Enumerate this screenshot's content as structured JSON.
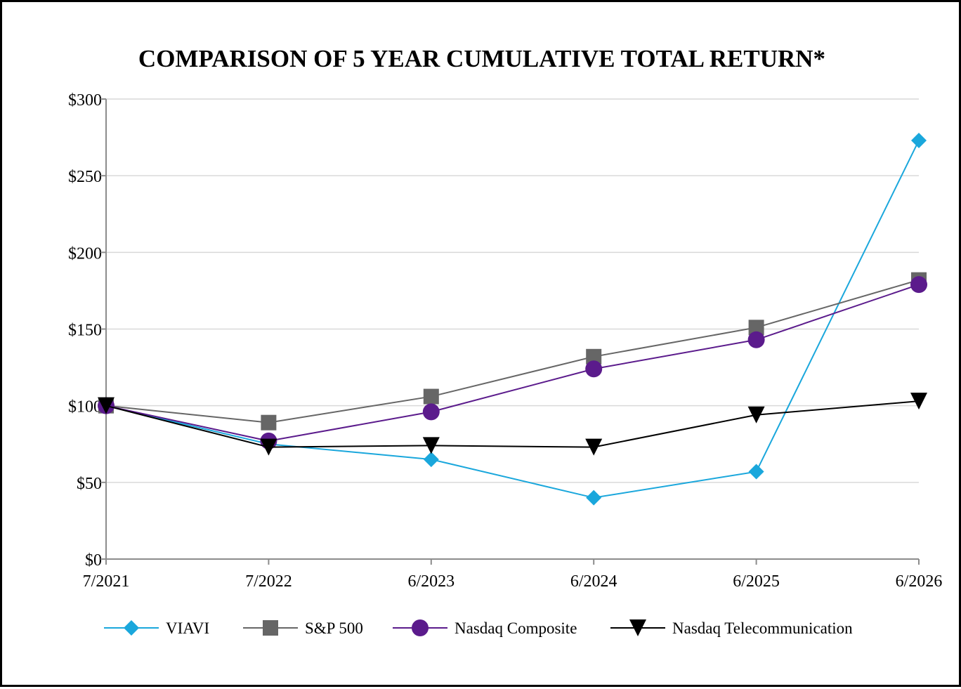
{
  "chart_data": {
    "type": "line",
    "title": "COMPARISON OF 5 YEAR CUMULATIVE TOTAL RETURN*",
    "xlabel": "",
    "ylabel": "",
    "categories": [
      "7/2021",
      "7/2022",
      "6/2023",
      "6/2024",
      "6/2025",
      "6/2026"
    ],
    "y_tick_labels": [
      "$0",
      "$50",
      "$100",
      "$150",
      "$200",
      "$250",
      "$300"
    ],
    "ylim": [
      0,
      300
    ],
    "y_ticks": [
      0,
      50,
      100,
      150,
      200,
      250,
      300
    ],
    "grid": "horizontal",
    "legend_position": "bottom",
    "series": [
      {
        "name": "VIAVI",
        "values": [
          100,
          75,
          65,
          40,
          57,
          273
        ],
        "color": "#1aa7dc",
        "marker": "diamond"
      },
      {
        "name": "S&P 500",
        "values": [
          100,
          89,
          106,
          132,
          151,
          182
        ],
        "color": "#666666",
        "marker": "square"
      },
      {
        "name": "Nasdaq Composite",
        "values": [
          100,
          77,
          96,
          124,
          143,
          179
        ],
        "color": "#5b1b8c",
        "marker": "circle"
      },
      {
        "name": "Nasdaq Telecommunication",
        "values": [
          100,
          73,
          74,
          73,
          94,
          103
        ],
        "color": "#000000",
        "marker": "triangle-down"
      }
    ]
  }
}
